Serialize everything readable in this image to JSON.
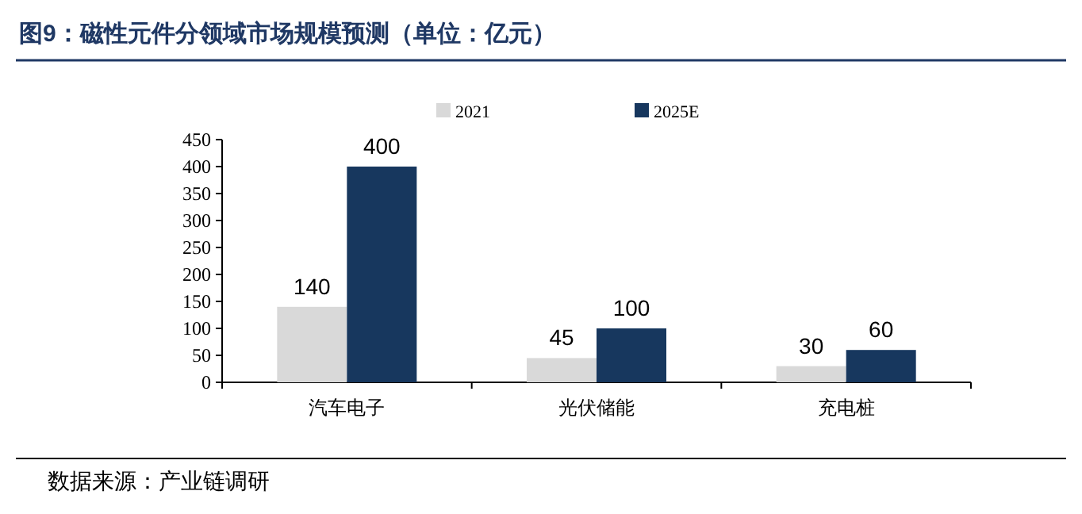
{
  "chart_data": {
    "type": "bar",
    "title": "图9：磁性元件分领域市场规模预测（单位：亿元）",
    "categories": [
      "汽车电子",
      "光伏储能",
      "充电桩"
    ],
    "series": [
      {
        "name": "2021",
        "color": "#d9d9d9",
        "values": [
          140,
          45,
          30
        ]
      },
      {
        "name": "2025E",
        "color": "#17375e",
        "values": [
          400,
          100,
          60
        ]
      }
    ],
    "ylim": [
      0,
      450
    ],
    "yticks": [
      0,
      50,
      100,
      150,
      200,
      250,
      300,
      350,
      400,
      450
    ],
    "data_labels": true,
    "legend": "top",
    "grid": false,
    "annotations": [
      "数据来源：产业链调研"
    ]
  }
}
